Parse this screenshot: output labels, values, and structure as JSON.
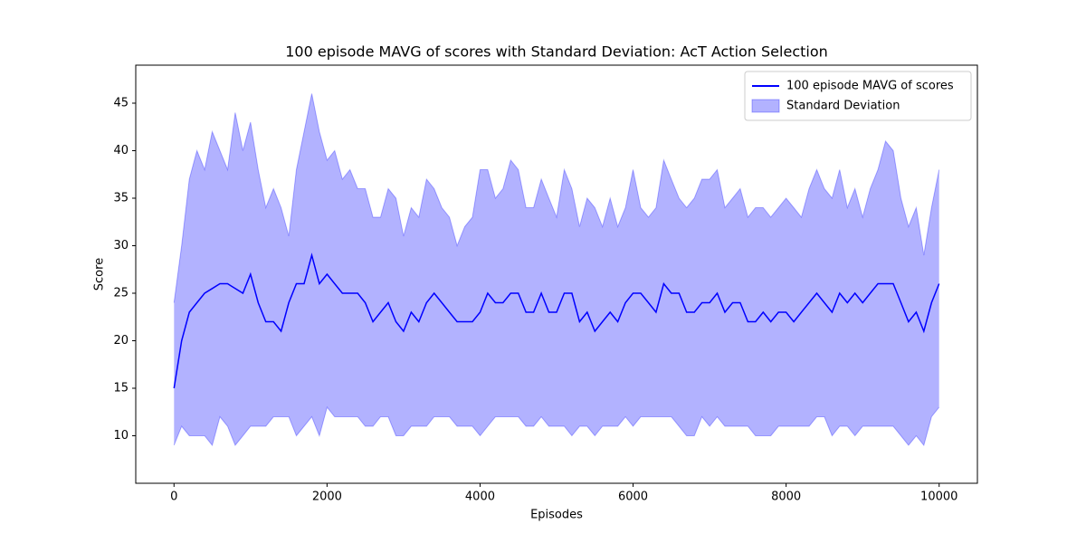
{
  "chart_data": {
    "type": "line-band",
    "title": "100 episode MAVG of scores with Standard Deviation: AcT Action Selection",
    "xlabel": "Episodes",
    "ylabel": "Score",
    "xlim": [
      -500,
      10500
    ],
    "ylim": [
      5,
      49
    ],
    "xticks": [
      0,
      2000,
      4000,
      6000,
      8000,
      10000
    ],
    "yticks": [
      10,
      15,
      20,
      25,
      30,
      35,
      40,
      45
    ],
    "legend": "upper right",
    "x": [
      0,
      100,
      200,
      300,
      400,
      500,
      600,
      700,
      800,
      900,
      1000,
      1100,
      1200,
      1300,
      1400,
      1500,
      1600,
      1700,
      1800,
      1900,
      2000,
      2100,
      2200,
      2300,
      2400,
      2500,
      2600,
      2700,
      2800,
      2900,
      3000,
      3100,
      3200,
      3300,
      3400,
      3500,
      3600,
      3700,
      3800,
      3900,
      4000,
      4100,
      4200,
      4300,
      4400,
      4500,
      4600,
      4700,
      4800,
      4900,
      5000,
      5100,
      5200,
      5300,
      5400,
      5500,
      5600,
      5700,
      5800,
      5900,
      6000,
      6100,
      6200,
      6300,
      6400,
      6500,
      6600,
      6700,
      6800,
      6900,
      7000,
      7100,
      7200,
      7300,
      7400,
      7500,
      7600,
      7700,
      7800,
      7900,
      8000,
      8100,
      8200,
      8300,
      8400,
      8500,
      8600,
      8700,
      8800,
      8900,
      9000,
      9100,
      9200,
      9300,
      9400,
      9500,
      9600,
      9700,
      9800,
      9900,
      10000
    ],
    "series": [
      {
        "name": "100 episode MAVG of scores",
        "color": "#0000ff",
        "values": [
          15,
          20,
          23,
          24,
          25,
          25.5,
          26,
          26,
          25.5,
          25,
          27,
          24,
          22,
          22,
          21,
          24,
          26,
          26,
          29,
          26,
          27,
          26,
          25,
          25,
          25,
          24,
          22,
          23,
          24,
          22,
          21,
          23,
          22,
          24,
          25,
          24,
          23,
          22,
          22,
          22,
          23,
          25,
          24,
          24,
          25,
          25,
          23,
          23,
          25,
          23,
          23,
          25,
          25,
          22,
          23,
          21,
          22,
          23,
          22,
          24,
          25,
          25,
          24,
          23,
          26,
          25,
          25,
          23,
          23,
          24,
          24,
          25,
          23,
          24,
          24,
          22,
          22,
          23,
          22,
          23,
          23,
          22,
          23,
          24,
          25,
          24,
          23,
          25,
          24,
          25,
          24,
          25,
          26,
          26,
          26,
          24,
          22,
          23,
          21,
          24,
          26
        ]
      },
      {
        "name": "Standard Deviation",
        "color": "#0000ff",
        "alpha": 0.3,
        "upper": [
          24,
          30,
          37,
          40,
          38,
          42,
          40,
          38,
          44,
          40,
          43,
          38,
          34,
          36,
          34,
          31,
          38,
          42,
          46,
          42,
          39,
          40,
          37,
          38,
          36,
          36,
          33,
          33,
          36,
          35,
          31,
          34,
          33,
          37,
          36,
          34,
          33,
          30,
          32,
          33,
          38,
          38,
          35,
          36,
          39,
          38,
          34,
          34,
          37,
          35,
          33,
          38,
          36,
          32,
          35,
          34,
          32,
          35,
          32,
          34,
          38,
          34,
          33,
          34,
          39,
          37,
          35,
          34,
          35,
          37,
          37,
          38,
          34,
          35,
          36,
          33,
          34,
          34,
          33,
          34,
          35,
          34,
          33,
          36,
          38,
          36,
          35,
          38,
          34,
          36,
          33,
          36,
          38,
          41,
          40,
          35,
          32,
          34,
          29,
          34,
          38
        ],
        "lower": [
          9,
          11,
          10,
          10,
          10,
          9,
          12,
          11,
          9,
          10,
          11,
          11,
          11,
          12,
          12,
          12,
          10,
          11,
          12,
          10,
          13,
          12,
          12,
          12,
          12,
          11,
          11,
          12,
          12,
          10,
          10,
          11,
          11,
          11,
          12,
          12,
          12,
          11,
          11,
          11,
          10,
          11,
          12,
          12,
          12,
          12,
          11,
          11,
          12,
          11,
          11,
          11,
          10,
          11,
          11,
          10,
          11,
          11,
          11,
          12,
          11,
          12,
          12,
          12,
          12,
          12,
          11,
          10,
          10,
          12,
          11,
          12,
          11,
          11,
          11,
          11,
          10,
          10,
          10,
          11,
          11,
          11,
          11,
          11,
          12,
          12,
          10,
          11,
          11,
          10,
          11,
          11,
          11,
          11,
          11,
          10,
          9,
          10,
          9,
          12,
          13
        ]
      }
    ]
  }
}
